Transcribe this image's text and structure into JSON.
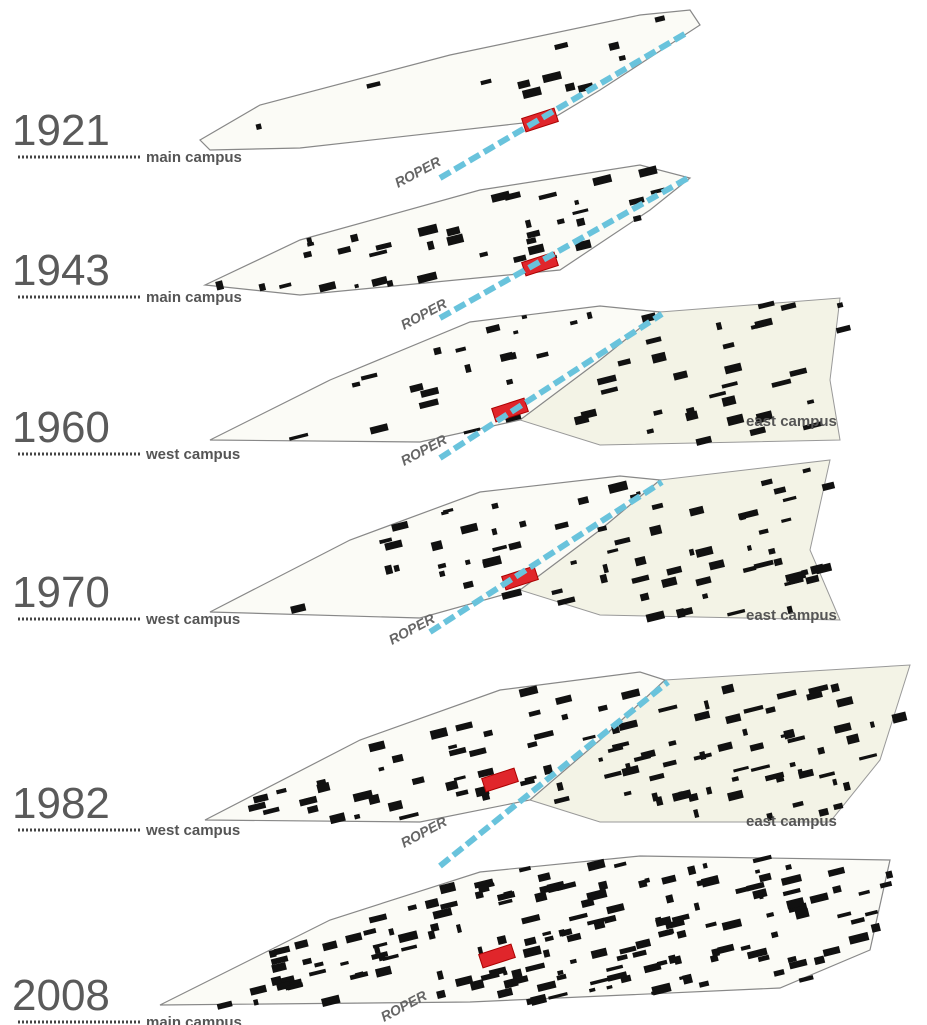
{
  "layers": [
    {
      "year": "1921",
      "campus": "main campus",
      "road": "ROPER"
    },
    {
      "year": "1943",
      "campus": "main campus",
      "road": "ROPER"
    },
    {
      "year": "1960",
      "campus": "west campus",
      "road": "ROPER",
      "east": "east campus"
    },
    {
      "year": "1970",
      "campus": "west campus",
      "road": "ROPER",
      "east": "east campus"
    },
    {
      "year": "1982",
      "campus": "west campus",
      "road": "ROPER",
      "east": "east campus"
    },
    {
      "year": "2008",
      "campus": "main campus",
      "road": "ROPER"
    }
  ]
}
